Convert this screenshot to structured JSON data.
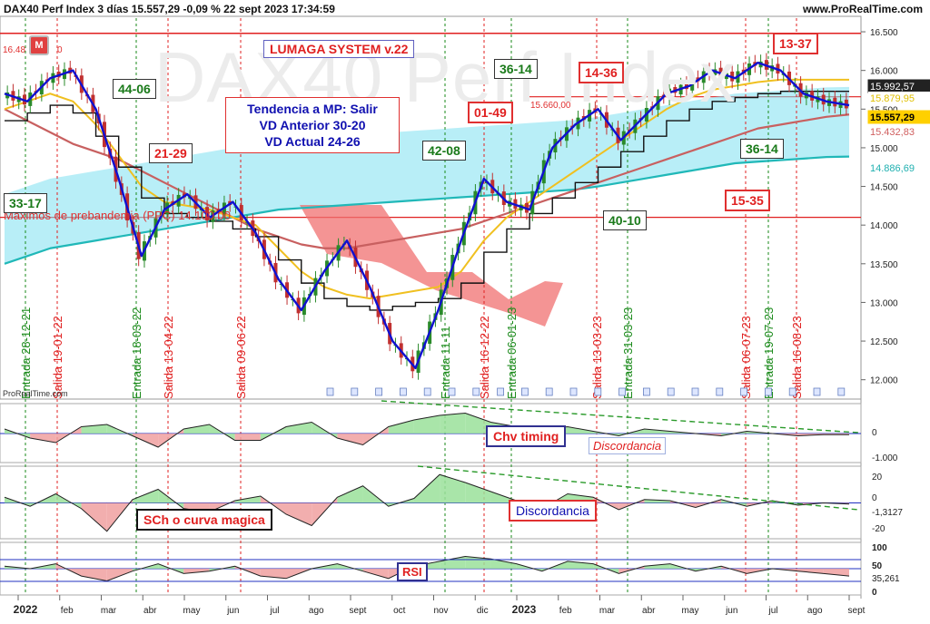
{
  "header": {
    "title": "DAX40 Perf Index 3 días 15.557,29 -0,09 % 22 sept 2023 17:34:59",
    "site": "www.ProRealTime.com",
    "watermark": "DAX40 Perf Index",
    "credit": "ProRealTime.com"
  },
  "annotations": {
    "system": "LUMAGA SYSTEM v.22",
    "trend_line1": "Tendencia a MP: Salir",
    "trend_line2": "VD Anterior 30-20",
    "trend_line3": "VD Actual 24-26",
    "maximos": "Maximos de prebandemia (PPC) 14.100,00",
    "m_badge": "M",
    "level_top_left": "16.48",
    "level_top_left_end": "0",
    "level_15660": "15.660,00",
    "boxes": [
      {
        "text": "33-17",
        "color": "green"
      },
      {
        "text": "44-06",
        "color": "green"
      },
      {
        "text": "21-29",
        "color": "red"
      },
      {
        "text": "42-08",
        "color": "green"
      },
      {
        "text": "01-49",
        "color": "red"
      },
      {
        "text": "36-14",
        "color": "green"
      },
      {
        "text": "14-36",
        "color": "red"
      },
      {
        "text": "40-10",
        "color": "green"
      },
      {
        "text": "13-37",
        "color": "red"
      },
      {
        "text": "36-14",
        "color": "green"
      },
      {
        "text": "15-35",
        "color": "red"
      }
    ],
    "chv_timing": "Chv timing",
    "discordancia_1": "Discordancia",
    "sch": "SCh o curva magica",
    "discordancia_2": "Discordancia",
    "rsi": "RSI"
  },
  "signals": [
    {
      "label": "Entrada 28-12-21",
      "type": "entrada"
    },
    {
      "label": "Salida 19-01-22",
      "type": "salida"
    },
    {
      "label": "Entrada 18-03-22",
      "type": "entrada"
    },
    {
      "label": "Salida 13-04-22",
      "type": "salida"
    },
    {
      "label": "Salida 09-06-22",
      "type": "salida"
    },
    {
      "label": "Entrada 11-11",
      "type": "entrada"
    },
    {
      "label": "Salida 16-12-22",
      "type": "salida"
    },
    {
      "label": "Entrada 06-01-23",
      "type": "entrada"
    },
    {
      "label": "Salida 13-03-23",
      "type": "salida"
    },
    {
      "label": "Entrada 31-03-23",
      "type": "entrada"
    },
    {
      "label": "Salida 06-07-23",
      "type": "salida"
    },
    {
      "label": "Entrada 19-07-23",
      "type": "entrada"
    },
    {
      "label": "Salida 16-08-23",
      "type": "salida"
    }
  ],
  "price_labels": [
    {
      "text": "15.992,57",
      "color": "#ffffff",
      "bg": "#222222"
    },
    {
      "text": "15.879,95",
      "color": "#e0c000",
      "bg": "#ffffff"
    },
    {
      "text": "15.557,29",
      "color": "#000000",
      "bg": "#ffd000"
    },
    {
      "text": "15.432,83",
      "color": "#d06060",
      "bg": "#ffffff"
    },
    {
      "text": "14.886,69",
      "color": "#20b0b0",
      "bg": "#ffffff"
    }
  ],
  "osc_labels": {
    "chv": [
      "0",
      "-1.000"
    ],
    "sch": [
      "20",
      "0",
      "-1,3127",
      "-20"
    ],
    "rsi": [
      "100",
      "50",
      "35,261",
      "0"
    ]
  },
  "colors": {
    "price_line": "#1010d0",
    "ema_yellow": "#f0c020",
    "ma_red": "#c86060",
    "ma_cyan": "#20b8b8",
    "kumo_blue": "#7ee0f0",
    "kumo_red": "#f07070",
    "bull": "#2a8a2a",
    "bear": "#c03030"
  },
  "chart_data": {
    "type": "line",
    "title": "DAX40 Perf Index 3 días",
    "x_ticks": [
      "2022",
      "feb",
      "mar",
      "abr",
      "may",
      "jun",
      "jul",
      "ago",
      "sept",
      "oct",
      "nov",
      "dic",
      "2023",
      "feb",
      "mar",
      "abr",
      "may",
      "jun",
      "jul",
      "ago",
      "sept"
    ],
    "y_ticks": [
      12000,
      12500,
      13000,
      13500,
      14000,
      14500,
      15000,
      15500,
      16000,
      16500
    ],
    "ylim": [
      11750,
      16700
    ],
    "levels": [
      16480,
      15660,
      14100
    ],
    "series": [
      {
        "values": [
          15700,
          15600,
          15900,
          16000,
          15500,
          14600,
          13600,
          14200,
          14400,
          14100,
          14300,
          13900,
          13300,
          12900,
          13400,
          13800,
          13200,
          12500,
          12150,
          12900,
          13800,
          14600,
          14300,
          14200,
          15000,
          15300,
          15500,
          15100,
          15400,
          15700,
          15800,
          16000,
          15900,
          16100,
          16000,
          15700,
          15600,
          15550
        ]
      },
      {
        "values": [
          15500,
          15600,
          15700,
          15600,
          15300,
          14900,
          14500,
          14300,
          14250,
          14200,
          14100,
          14000,
          13700,
          13400,
          13200,
          13100,
          13050,
          13100,
          13150,
          13200,
          13400,
          13800,
          14100,
          14300,
          14500,
          14700,
          14900,
          15100,
          15300,
          15500,
          15650,
          15750,
          15800,
          15850,
          15880,
          15880,
          15880,
          15880
        ]
      },
      {
        "values": [
          15500,
          15350,
          15200,
          15050,
          14950,
          14850,
          14700,
          14550,
          14400,
          14250,
          14100,
          13950,
          13850,
          13750,
          13700,
          13700,
          13750,
          13800,
          13850,
          13900,
          13950,
          14050,
          14150,
          14250,
          14350,
          14450,
          14550,
          14650,
          14750,
          14850,
          14950,
          15050,
          15150,
          15250,
          15300,
          15350,
          15400,
          15430
        ]
      },
      {
        "values": [
          13500,
          13600,
          13700,
          13750,
          13800,
          13850,
          13900,
          13950,
          14000,
          14050,
          14100,
          14150,
          14200,
          14220,
          14240,
          14260,
          14280,
          14300,
          14320,
          14340,
          14360,
          14380,
          14400,
          14420,
          14440,
          14460,
          14500,
          14550,
          14600,
          14650,
          14700,
          14750,
          14800,
          14820,
          14840,
          14860,
          14880,
          14886
        ]
      }
    ],
    "oscillators": {
      "chv": {
        "values": [
          200,
          -200,
          -400,
          300,
          400,
          -100,
          -600,
          200,
          400,
          -300,
          -300,
          300,
          500,
          -200,
          -500,
          300,
          600,
          800,
          900,
          500,
          300,
          200,
          300,
          100,
          -100,
          200,
          100,
          0,
          -100,
          100,
          0,
          -100,
          -50,
          -50
        ]
      },
      "sch": {
        "values": [
          5,
          -3,
          8,
          -5,
          -25,
          3,
          12,
          -5,
          -8,
          2,
          6,
          -10,
          -20,
          5,
          15,
          -3,
          4,
          25,
          18,
          10,
          2,
          -5,
          8,
          5,
          -6,
          3,
          2,
          -4,
          3,
          -3,
          2,
          -2,
          0,
          -1
        ]
      },
      "rsi": {
        "values": [
          55,
          50,
          60,
          35,
          25,
          45,
          60,
          40,
          45,
          55,
          35,
          30,
          50,
          60,
          45,
          30,
          55,
          65,
          75,
          70,
          60,
          45,
          65,
          60,
          40,
          55,
          60,
          45,
          55,
          40,
          50,
          45,
          40,
          35
        ]
      }
    }
  }
}
